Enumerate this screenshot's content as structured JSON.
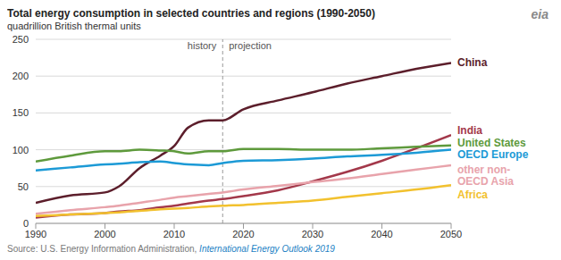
{
  "chart_data": {
    "type": "line",
    "title": "Total energy consumption in selected countries and regions (1990-2050)",
    "subtitle": "quadrillion British thermal units",
    "logo": "eia",
    "source": {
      "text": "Source: U.S. Energy Information Administration,",
      "link": "International Energy Outlook 2019"
    },
    "x": [
      1990,
      1995,
      2000,
      2002,
      2005,
      2008,
      2010,
      2012,
      2015,
      2017,
      2020,
      2025,
      2030,
      2035,
      2040,
      2045,
      2050
    ],
    "xlim": [
      1990,
      2050
    ],
    "xticks": [
      1990,
      2000,
      2010,
      2020,
      2030,
      2040,
      2050
    ],
    "ylim": [
      0,
      250
    ],
    "yticks": [
      0,
      50,
      100,
      150,
      200,
      250
    ],
    "grid": true,
    "annotations": [
      {
        "x": 2017,
        "left_text": "history",
        "right_text": "projection"
      }
    ],
    "series": [
      {
        "name": "China",
        "color": "#5c1e2b",
        "values": [
          28,
          38,
          42,
          50,
          75,
          92,
          105,
          130,
          140,
          140,
          155,
          167,
          178,
          190,
          200,
          210,
          218
        ]
      },
      {
        "name": "India",
        "color": "#a3384a",
        "values": [
          8,
          12,
          14,
          16,
          18,
          22,
          24,
          27,
          31,
          33,
          37,
          45,
          57,
          70,
          85,
          102,
          120
        ]
      },
      {
        "name": "United States",
        "color": "#5e9a3c",
        "values": [
          84,
          92,
          98,
          98,
          100,
          99,
          98,
          95,
          98,
          98,
          101,
          101,
          100,
          100,
          102,
          104,
          106
        ]
      },
      {
        "name": "OECD Europe",
        "color": "#1c9ad6",
        "values": [
          72,
          76,
          80,
          81,
          83,
          84,
          82,
          80,
          79,
          82,
          85,
          86,
          88,
          91,
          93,
          96,
          100
        ]
      },
      {
        "name": "other non-OECD Asia",
        "color": "#e8a3ab",
        "values": [
          13,
          18,
          22,
          24,
          28,
          32,
          35,
          37,
          40,
          42,
          46,
          51,
          56,
          61,
          67,
          73,
          79
        ]
      },
      {
        "name": "Africa",
        "color": "#f2c12e",
        "values": [
          10,
          12,
          14,
          15,
          17,
          19,
          20,
          21,
          23,
          24,
          25,
          28,
          31,
          36,
          41,
          46,
          52
        ]
      }
    ]
  }
}
